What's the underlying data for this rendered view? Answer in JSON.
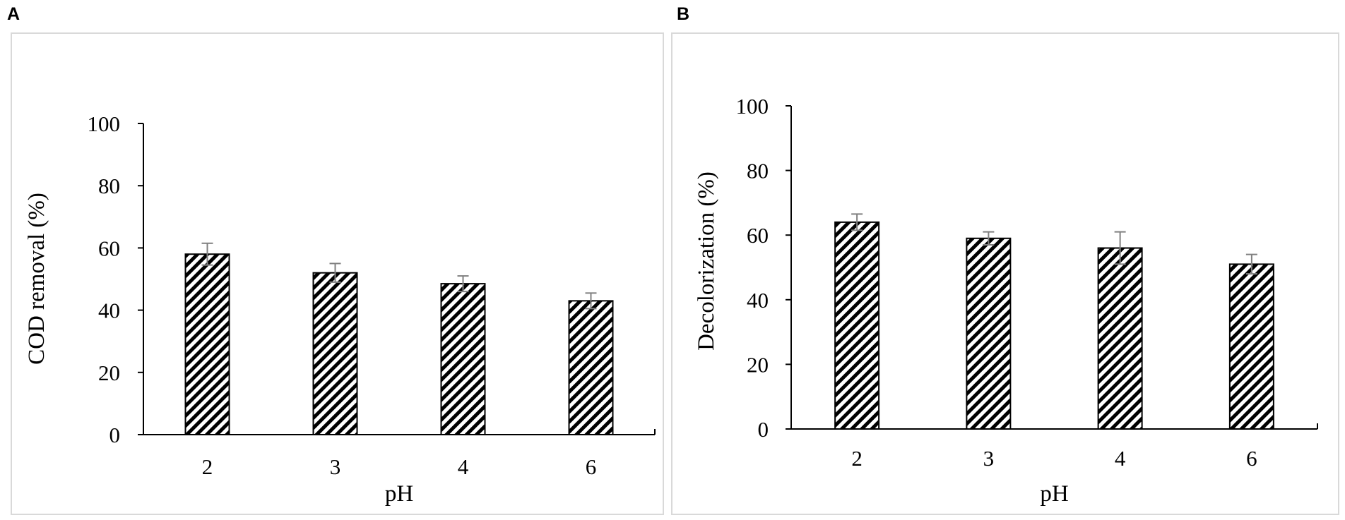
{
  "chart_data": [
    {
      "panel": "A",
      "type": "bar",
      "categories": [
        "2",
        "3",
        "4",
        "6"
      ],
      "values": [
        58,
        52,
        48.5,
        43
      ],
      "errors": [
        3.5,
        3,
        2.5,
        2.5
      ],
      "xlabel": "pH",
      "ylabel": "COD removal (%)",
      "ylim": [
        0,
        100
      ],
      "yticks": [
        "0",
        "20",
        "40",
        "60",
        "80",
        "100"
      ],
      "grid": false,
      "legend": "none",
      "bar_pattern": "diagonal-hatch"
    },
    {
      "panel": "B",
      "type": "bar",
      "categories": [
        "2",
        "3",
        "4",
        "6"
      ],
      "values": [
        64,
        59,
        56,
        51
      ],
      "errors": [
        2.5,
        2,
        5,
        3
      ],
      "xlabel": "pH",
      "ylabel": "Decolorization (%)",
      "ylim": [
        0,
        100
      ],
      "yticks": [
        "0",
        "20",
        "40",
        "60",
        "80",
        "100"
      ],
      "grid": false,
      "legend": "none",
      "bar_pattern": "diagonal-hatch"
    }
  ],
  "colors": {
    "bar_fill": "#000000",
    "bar_hatch_bg": "#ffffff",
    "error_bar": "#808080",
    "frame": "#d9d9d9"
  }
}
